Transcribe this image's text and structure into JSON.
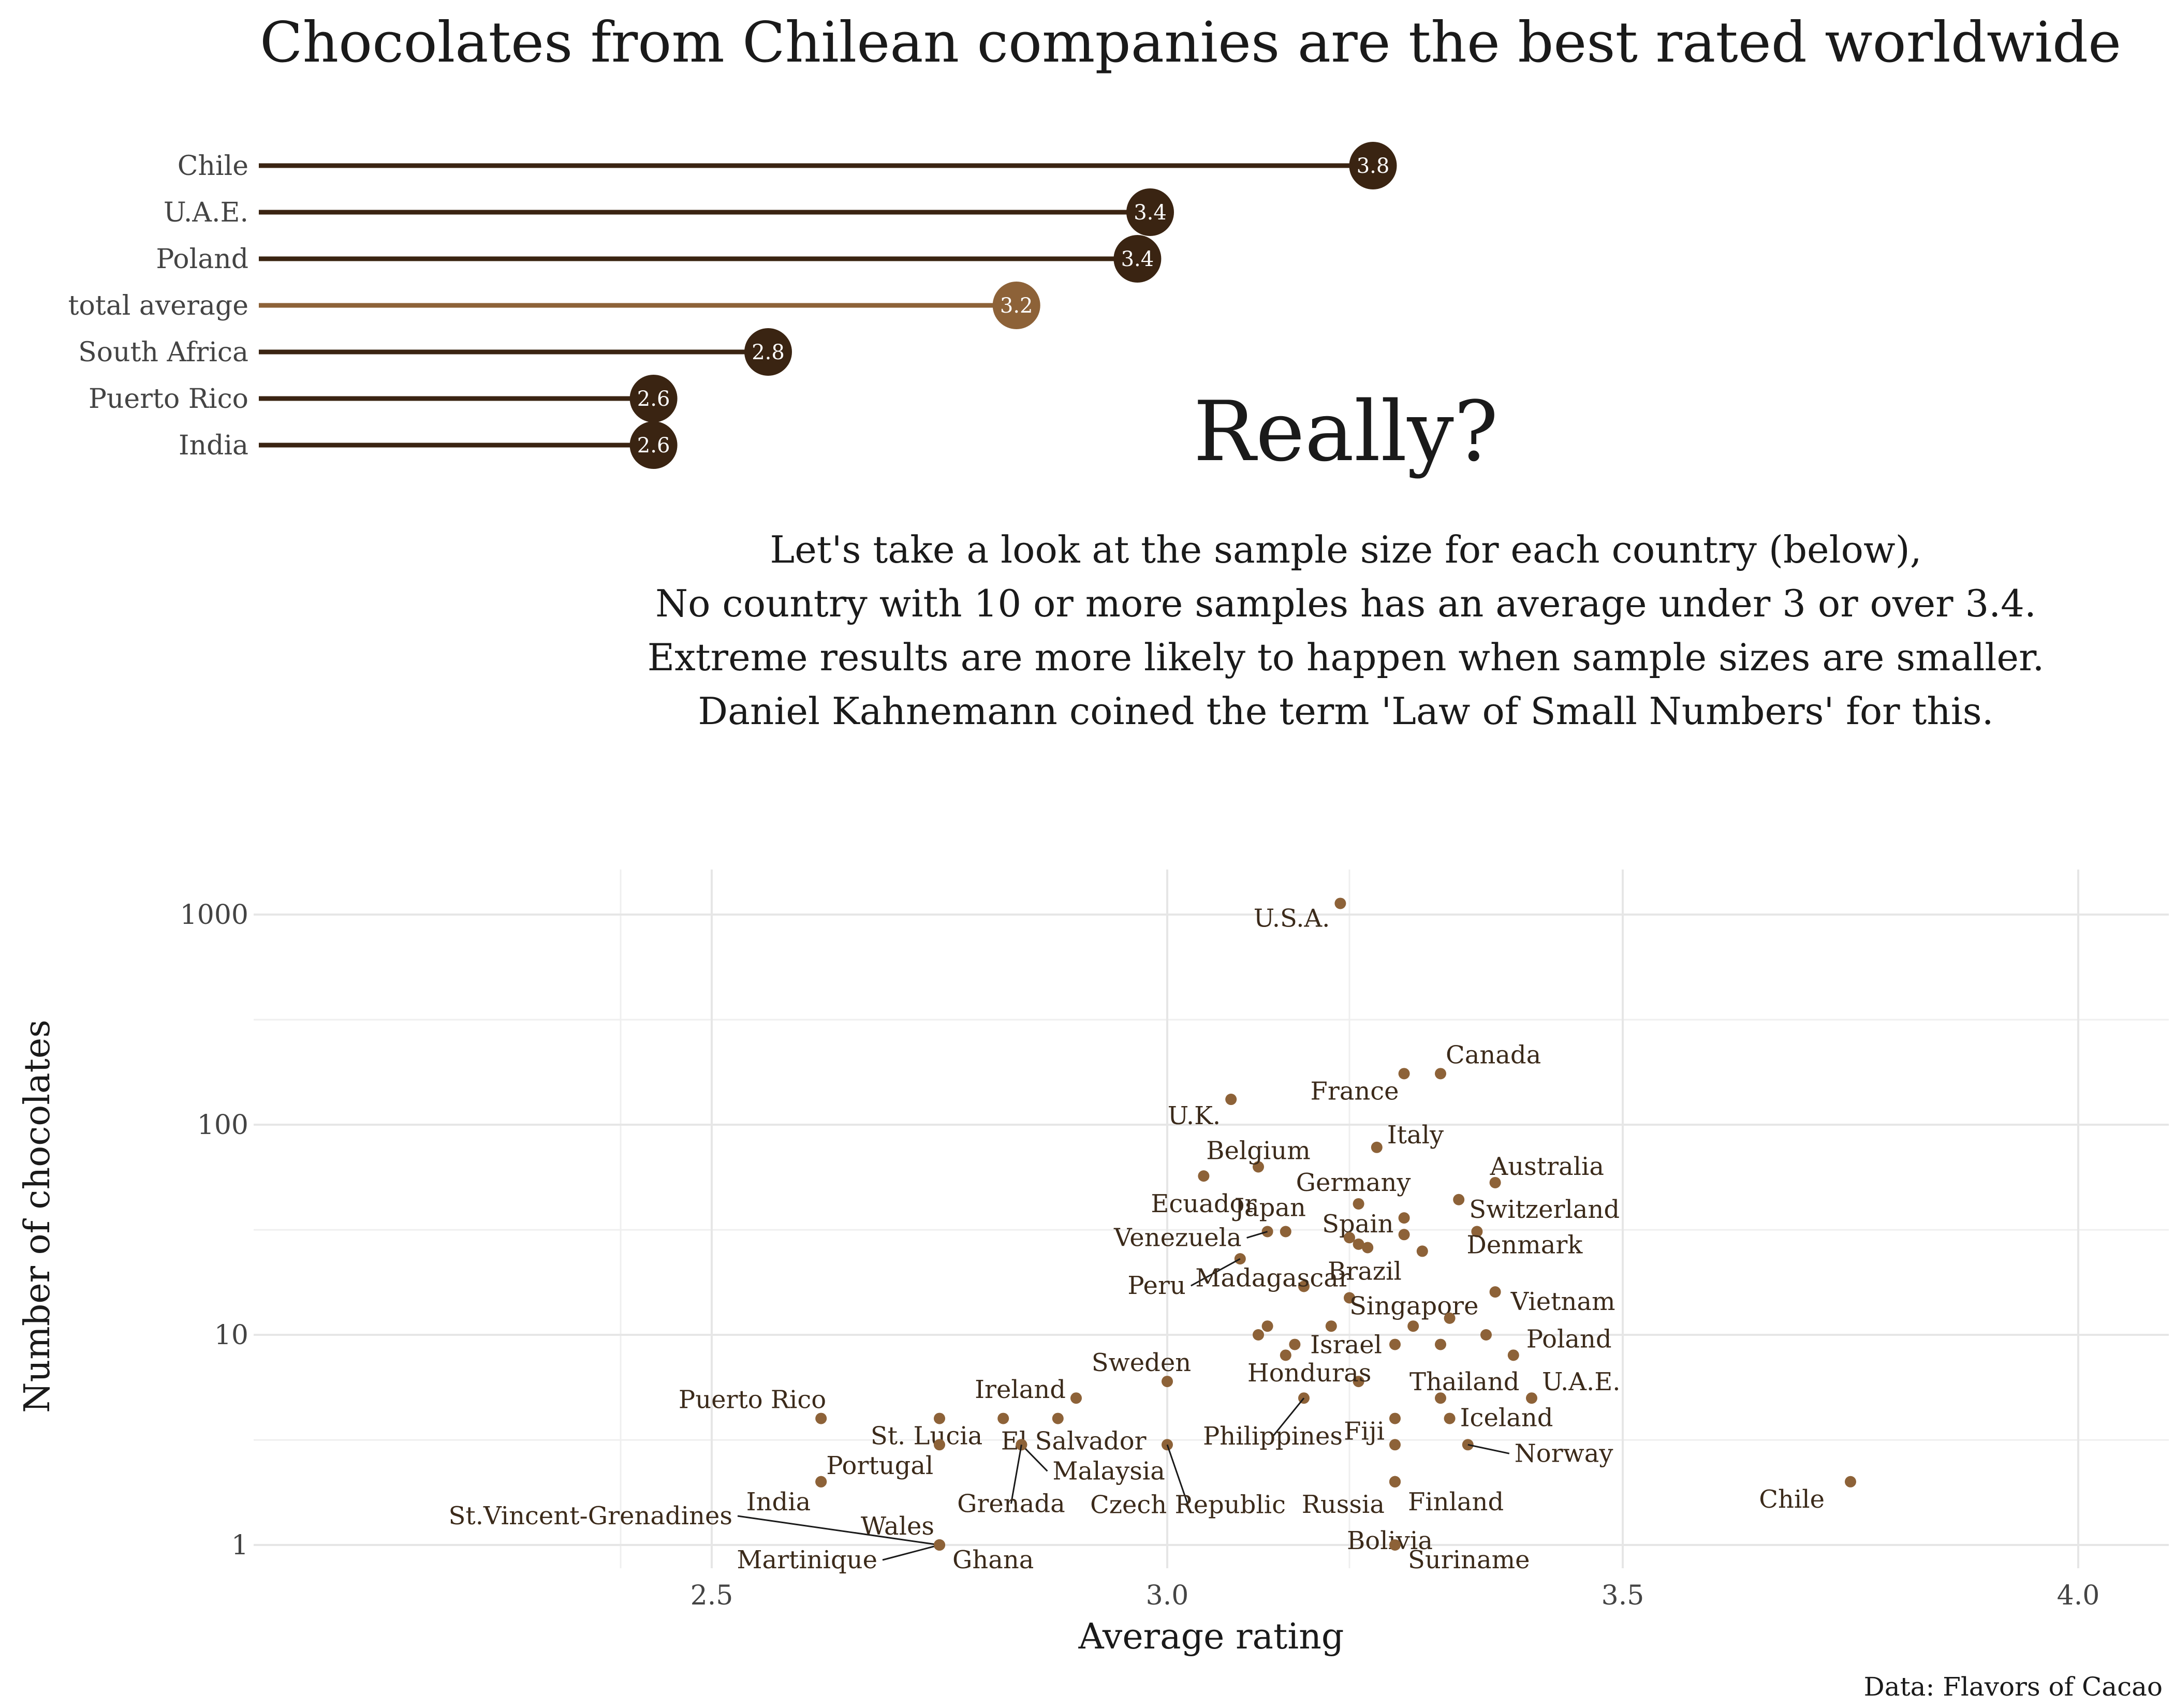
{
  "title": "Chocolates from Chilean companies are the best rated worldwide",
  "really": "Really?",
  "explanation": [
    "Let's take a look at the sample size for each country (below),",
    "No country with 10 or more samples has an average under 3 or over 3.4.",
    "Extreme results are more likely to happen when sample sizes are smaller.",
    "Daniel Kahnemann coined the term 'Law of Small Numbers' for this."
  ],
  "caption": "Data: Flavors of Cacao",
  "colors": {
    "dark": "#3a2412",
    "highlight": "#8d6238",
    "point": "#8d6238",
    "grid": "#e6e6e6"
  },
  "chart_data": [
    {
      "type": "bar",
      "title": "Chocolates from Chilean companies are the best rated worldwide",
      "categories": [
        "Chile",
        "U.A.E.",
        "Poland",
        "total average",
        "South Africa",
        "Puerto Rico",
        "India"
      ],
      "values": [
        3.75,
        3.4,
        3.38,
        3.19,
        2.8,
        2.62,
        2.62
      ],
      "value_labels": [
        "3.8",
        "3.4",
        "3.4",
        "3.2",
        "2.8",
        "2.6",
        "2.6"
      ],
      "highlight": "total average",
      "xlim": [
        2.0,
        4.0
      ]
    },
    {
      "type": "scatter",
      "xlabel": "Average rating",
      "ylabel": "Number of chocolates",
      "xlim": [
        2.0,
        4.1
      ],
      "ylim": [
        0.8,
        1600
      ],
      "y_scale": "log",
      "xticks": [
        "2.5",
        "3.0",
        "3.5",
        "4.0"
      ],
      "yticks": [
        "1",
        "10",
        "100",
        "1000"
      ],
      "grid": true,
      "points": [
        {
          "x": 3.19,
          "y": 1130,
          "label": "U.S.A."
        },
        {
          "x": 3.3,
          "y": 175,
          "label": "Canada"
        },
        {
          "x": 3.26,
          "y": 175,
          "label": "France"
        },
        {
          "x": 3.07,
          "y": 132,
          "label": "U.K."
        },
        {
          "x": 3.23,
          "y": 78,
          "label": "Italy"
        },
        {
          "x": 3.1,
          "y": 63,
          "label": "Belgium"
        },
        {
          "x": 3.36,
          "y": 53,
          "label": "Australia"
        },
        {
          "x": 3.04,
          "y": 57,
          "label": "Ecuador"
        },
        {
          "x": 3.21,
          "y": 42,
          "label": "Germany"
        },
        {
          "x": 3.32,
          "y": 44,
          "label": "Switzerland"
        },
        {
          "x": 3.13,
          "y": 31,
          "label": "Japan"
        },
        {
          "x": 3.11,
          "y": 31,
          "label": "Venezuela"
        },
        {
          "x": 3.26,
          "y": 36,
          "label": "Spain"
        },
        {
          "x": 3.34,
          "y": 31,
          "label": "Denmark"
        },
        {
          "x": 3.2,
          "y": 29,
          "label": ""
        },
        {
          "x": 3.21,
          "y": 27,
          "label": ""
        },
        {
          "x": 3.22,
          "y": 26,
          "label": ""
        },
        {
          "x": 3.26,
          "y": 30,
          "label": ""
        },
        {
          "x": 3.28,
          "y": 25,
          "label": "Brazil"
        },
        {
          "x": 3.08,
          "y": 23,
          "label": "Peru"
        },
        {
          "x": 3.15,
          "y": 17,
          "label": "Madagascar"
        },
        {
          "x": 3.36,
          "y": 16,
          "label": "Vietnam"
        },
        {
          "x": 3.2,
          "y": 15,
          "label": "Singapore"
        },
        {
          "x": 3.31,
          "y": 12,
          "label": ""
        },
        {
          "x": 3.27,
          "y": 11,
          "label": ""
        },
        {
          "x": 3.18,
          "y": 11,
          "label": ""
        },
        {
          "x": 3.11,
          "y": 11,
          "label": ""
        },
        {
          "x": 3.1,
          "y": 10,
          "label": ""
        },
        {
          "x": 3.35,
          "y": 10,
          "label": ""
        },
        {
          "x": 3.38,
          "y": 8,
          "label": "Poland"
        },
        {
          "x": 3.25,
          "y": 9,
          "label": "Israel"
        },
        {
          "x": 3.3,
          "y": 9,
          "label": ""
        },
        {
          "x": 3.14,
          "y": 9,
          "label": ""
        },
        {
          "x": 3.13,
          "y": 8,
          "label": ""
        },
        {
          "x": 3.0,
          "y": 6,
          "label": "Sweden"
        },
        {
          "x": 3.21,
          "y": 6,
          "label": "Honduras"
        },
        {
          "x": 3.3,
          "y": 5,
          "label": "Thailand"
        },
        {
          "x": 3.4,
          "y": 5,
          "label": "U.A.E."
        },
        {
          "x": 3.15,
          "y": 5,
          "label": "Philippines"
        },
        {
          "x": 2.9,
          "y": 5,
          "label": "Ireland"
        },
        {
          "x": 2.62,
          "y": 4,
          "label": "Puerto Rico"
        },
        {
          "x": 2.75,
          "y": 4,
          "label": ""
        },
        {
          "x": 2.82,
          "y": 4,
          "label": "St. Lucia"
        },
        {
          "x": 2.88,
          "y": 4,
          "label": "El Salvador"
        },
        {
          "x": 3.25,
          "y": 4,
          "label": ""
        },
        {
          "x": 3.31,
          "y": 4,
          "label": "Iceland"
        },
        {
          "x": 2.75,
          "y": 3,
          "label": ""
        },
        {
          "x": 2.84,
          "y": 3,
          "label": "Malaysia"
        },
        {
          "x": 2.84,
          "y": 3,
          "label": "Grenada"
        },
        {
          "x": 3.0,
          "y": 3,
          "label": "Czech Republic"
        },
        {
          "x": 3.25,
          "y": 3,
          "label": "Fiji"
        },
        {
          "x": 3.33,
          "y": 3,
          "label": "Norway"
        },
        {
          "x": 2.62,
          "y": 2,
          "label": "Portugal"
        },
        {
          "x": 2.62,
          "y": 2,
          "label": "India"
        },
        {
          "x": 3.25,
          "y": 2,
          "label": "Finland"
        },
        {
          "x": 3.25,
          "y": 2,
          "label": "Russia"
        },
        {
          "x": 3.25,
          "y": 2,
          "label": "Bolivia"
        },
        {
          "x": 3.75,
          "y": 2,
          "label": "Chile"
        },
        {
          "x": 2.75,
          "y": 1,
          "label": "St.Vincent-Grenadines"
        },
        {
          "x": 2.75,
          "y": 1,
          "label": "Wales"
        },
        {
          "x": 2.75,
          "y": 1,
          "label": "Martinique"
        },
        {
          "x": 2.75,
          "y": 1,
          "label": "Ghana"
        },
        {
          "x": 3.25,
          "y": 1,
          "label": "Suriname"
        }
      ]
    }
  ]
}
